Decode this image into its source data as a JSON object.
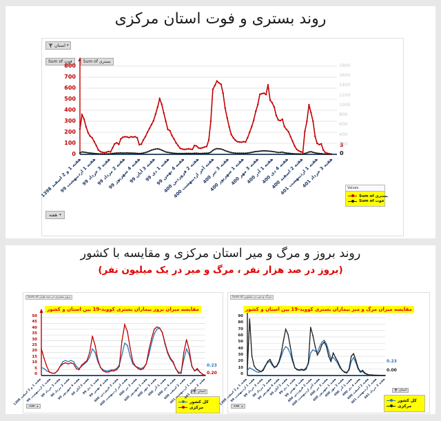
{
  "header": {
    "title1": "روند بستری و فوت استان مرکزی",
    "title2": "روند بروز و مرگ و میر استان مرکزی و مقایسه با کشور",
    "subtitle2": "(بروز در صد هزار نفر ، مرگ و میر در یک میلیون نفر)"
  },
  "icons": {
    "dropdown": "▾",
    "filter": "funnel"
  },
  "colors": {
    "hospitalized_red": "#c00000",
    "death_black": "#1a1a1a",
    "country_blue": "#2e75b6",
    "axis_navy": "#1f3864",
    "legend_yellow": "#ffff00",
    "secondary_axis_gray": "#c9c9c9"
  },
  "chart_data": [
    {
      "type": "line",
      "name": "hospitalization-death-trend",
      "filter_label": "استان",
      "field_buttons": [
        "Sum of فوت",
        "Sum of بستری"
      ],
      "week_button": "هفته",
      "left_axis": {
        "min": 0,
        "max": 800,
        "step": 100,
        "color": "#c00000"
      },
      "right_axis": {
        "min": 0,
        "max": 1800,
        "step": 200,
        "color": "#c9c9c9"
      },
      "axis_arrow_color": "#c00000",
      "legend": {
        "header": "Values",
        "items": [
          {
            "label": "Sum of بستری",
            "color": "#c00000"
          },
          {
            "label": "Sum of فوت",
            "color": "#1a1a1a"
          }
        ]
      },
      "end_labels": [
        {
          "text": "3",
          "color": "#c00000"
        },
        {
          "text": "0",
          "color": "#1a1a1a"
        }
      ],
      "categories": [
        "هفته 1 و 2 اسفند 1398",
        "هفته 1 اردیبهشت 99",
        "هفته 3 خرداد 99",
        "هفته 2 مرداد 99",
        "هفته 4 شهریور 99",
        "هفته 3 آبان 99",
        "هفته 1 دی 99",
        "هفته 4 بهمن 99",
        "هفته 2 فروردین 400",
        "هفته آخر اردیبهشت 400",
        "هفته 3 تیر 400",
        "هفته 1 شهریور 400",
        "هفته 3 مهر 400",
        "هفته 1 آذر 400",
        "هفته 4 دی 400",
        "هفته 2 اسفند 400",
        "هفته 1 اردیبهشت 401",
        "هفته 3 خرداد 401"
      ],
      "series": [
        {
          "name": "فوت",
          "color": "#1a1a1a",
          "width": 1.5,
          "marker": 1.1,
          "values": [
            12,
            22,
            20,
            17,
            14,
            12,
            10,
            8,
            6,
            5,
            4,
            3,
            3,
            4,
            5,
            5,
            8,
            10,
            12,
            12,
            13,
            12,
            12,
            13,
            12,
            12,
            11,
            10,
            9,
            8,
            9,
            12,
            16,
            22,
            30,
            38,
            44,
            48,
            50,
            46,
            38,
            30,
            22,
            18,
            15,
            12,
            10,
            9,
            8,
            8,
            8,
            8,
            9,
            9,
            9,
            8,
            10,
            10,
            9,
            8,
            9,
            10,
            10,
            12,
            20,
            35,
            46,
            52,
            50,
            48,
            42,
            34,
            27,
            21,
            16,
            13,
            11,
            10,
            10,
            10,
            10,
            10,
            12,
            15,
            18,
            22,
            25,
            27,
            29,
            31,
            32,
            31,
            30,
            28,
            26,
            24,
            20,
            17,
            18,
            20,
            15,
            12,
            10,
            8,
            6,
            5,
            4,
            4,
            3,
            3,
            8,
            14,
            21,
            24,
            19,
            14,
            10,
            8,
            6,
            4,
            2,
            1,
            1,
            0
          ]
        },
        {
          "name": "بستری",
          "color": "#c00000",
          "width": 1.6,
          "marker": 1.2,
          "values": [
            230,
            360,
            320,
            250,
            195,
            165,
            150,
            115,
            80,
            40,
            25,
            18,
            15,
            20,
            26,
            22,
            60,
            95,
            105,
            90,
            140,
            155,
            160,
            158,
            152,
            160,
            156,
            160,
            150,
            88,
            92,
            130,
            160,
            200,
            235,
            270,
            305,
            365,
            430,
            505,
            455,
            375,
            300,
            225,
            215,
            170,
            140,
            105,
            80,
            55,
            48,
            45,
            46,
            50,
            47,
            45,
            80,
            76,
            58,
            55,
            60,
            66,
            72,
            130,
            300,
            590,
            625,
            665,
            648,
            635,
            555,
            420,
            330,
            250,
            180,
            150,
            128,
            115,
            112,
            110,
            115,
            112,
            150,
            200,
            252,
            310,
            390,
            452,
            545,
            550,
            555,
            542,
            630,
            492,
            468,
            430,
            352,
            312,
            306,
            318,
            252,
            226,
            205,
            160,
            118,
            75,
            45,
            32,
            24,
            18,
            208,
            300,
            450,
            378,
            300,
            162,
            100,
            88,
            95,
            40,
            16,
            10,
            6,
            3
          ]
        }
      ]
    },
    {
      "type": "line",
      "name": "incidence-comparison",
      "title": "مقایسه میزان بروز بیماران بستری کووید-19 بین استان و کشور",
      "field_label": "Sum of بروز بستری در صد هزار",
      "filter_label": "استان",
      "week_button": "هفته",
      "left_axis": {
        "min": 0,
        "max": 50,
        "step": 5,
        "color": "#c00000"
      },
      "axis_arrow_color": "#c00000",
      "legend": {
        "items": [
          {
            "label": "کل کشور",
            "color": "#2e75b6"
          },
          {
            "label": "مرکزی",
            "color": "#c00000"
          }
        ]
      },
      "end_labels": [
        {
          "text": "0.23",
          "color": "#2e75b6"
        },
        {
          "text": "0.20",
          "color": "#c00000"
        }
      ],
      "categories": [
        "هفته 1 و 2 اسفند 1398",
        "هفته 1 اردیبهشت 99",
        "هفته 3 خرداد 99",
        "هفته 2 مرداد 99",
        "هفته 4 شهریور 99",
        "هفته 3 آبان 99",
        "هفته 1 دی 99",
        "هفته 4 بهمن 99",
        "هفته 2 فروردین 400",
        "هفته آخر اردیبهشت 400",
        "هفته 3 تیر 400",
        "هفته 1 شهریور 400",
        "هفته 3 مهر 400",
        "هفته 1 آذر 400",
        "هفته 4 دی 400",
        "هفته 2 اسفند 400",
        "هفته 1 اردیبهشت 401",
        "هفته 3 خرداد 401"
      ],
      "series": [
        {
          "name": "کل کشور",
          "color": "#2e75b6",
          "width": 1.3,
          "marker": 0.8,
          "values": [
            7,
            6,
            4,
            3,
            2,
            2,
            4,
            8,
            12,
            13,
            12,
            13,
            12,
            8,
            6,
            8,
            10,
            12,
            16,
            23,
            20,
            12,
            7,
            5,
            4,
            4,
            5,
            5,
            6,
            9,
            18,
            28,
            26,
            17,
            10,
            8,
            7,
            6,
            7,
            10,
            18,
            28,
            36,
            40,
            41,
            37,
            27,
            19,
            14,
            11,
            6,
            3,
            3,
            14,
            23,
            18,
            8,
            4,
            5,
            3,
            1,
            0.23
          ]
        },
        {
          "name": "مرکزی",
          "color": "#c00000",
          "width": 1.3,
          "marker": 0.8,
          "values": [
            23,
            15,
            8,
            3,
            2,
            2,
            4,
            8,
            10,
            11,
            10,
            11,
            10,
            6,
            5,
            9,
            11,
            13,
            20,
            34,
            26,
            14,
            7,
            4,
            3,
            3,
            4,
            4,
            5,
            8,
            30,
            44,
            38,
            24,
            12,
            8,
            6,
            5,
            6,
            10,
            22,
            32,
            40,
            42,
            41,
            37,
            28,
            20,
            15,
            12,
            6,
            2,
            2,
            20,
            31,
            22,
            8,
            4,
            6,
            3,
            1,
            0.2
          ]
        }
      ]
    },
    {
      "type": "line",
      "name": "mortality-comparison",
      "title": "مقایسه میزان مرگ و میر بیماران بستری کووید-19 بین استان و کشور",
      "field_label": "Sum of مرگ و میر در میلیون",
      "filter_label": "استان",
      "week_button": "هفته",
      "left_axis": {
        "min": 0,
        "max": 90,
        "step": 10,
        "color": "#1a1a1a"
      },
      "axis_arrow_color": "#1a1a1a",
      "legend": {
        "items": [
          {
            "label": "کل کشور",
            "color": "#2e75b6"
          },
          {
            "label": "مرکزی",
            "color": "#1a1a1a"
          }
        ]
      },
      "end_labels": [
        {
          "text": "0.23",
          "color": "#2e75b6"
        },
        {
          "text": "0.00",
          "color": "#1a1a1a"
        }
      ],
      "categories": [
        "هفته 1 و 2 اسفند 1398",
        "هفته 1 اردیبهشت 99",
        "هفته 3 خرداد 99",
        "هفته 2 مرداد 99",
        "هفته 4 شهریور 99",
        "هفته 3 آبان 99",
        "هفته 1 دی 99",
        "هفته 4 بهمن 99",
        "هفته 2 فروردین 400",
        "هفته آخر اردیبهشت 400",
        "هفته 3 تیر 400",
        "هفته 1 شهریور 400",
        "هفته 3 مهر 400",
        "هفته 1 آذر 400",
        "هفته 4 دی 400",
        "هفته 2 اسفند 400",
        "هفته 1 اردیبهشت 401",
        "هفته 3 خرداد 401"
      ],
      "series": [
        {
          "name": "کل کشور",
          "color": "#2e75b6",
          "width": 1.3,
          "marker": 0.8,
          "values": [
            8,
            12,
            10,
            8,
            6,
            5,
            6,
            10,
            16,
            20,
            22,
            16,
            12,
            14,
            20,
            30,
            40,
            45,
            42,
            34,
            22,
            12,
            10,
            9,
            10,
            9,
            12,
            18,
            35,
            40,
            38,
            36,
            45,
            52,
            55,
            49,
            38,
            26,
            28,
            24,
            19,
            12,
            8,
            6,
            5,
            8,
            22,
            28,
            20,
            10,
            5,
            6,
            3,
            2,
            1,
            1,
            0.8,
            0.6,
            0.4,
            0.3,
            0.25,
            0.23
          ]
        },
        {
          "name": "مرکزی",
          "color": "#1a1a1a",
          "width": 1.3,
          "marker": 0.8,
          "values": [
            10,
            88,
            30,
            15,
            10,
            8,
            6,
            8,
            15,
            22,
            25,
            18,
            13,
            15,
            22,
            35,
            55,
            72,
            64,
            45,
            25,
            12,
            9,
            8,
            9,
            8,
            10,
            20,
            75,
            62,
            45,
            32,
            38,
            48,
            52,
            45,
            30,
            22,
            35,
            28,
            22,
            14,
            8,
            5,
            4,
            10,
            30,
            34,
            24,
            12,
            6,
            8,
            4,
            2,
            1,
            1,
            0.5,
            0.3,
            0.2,
            0.1,
            0,
            0
          ]
        }
      ]
    }
  ]
}
